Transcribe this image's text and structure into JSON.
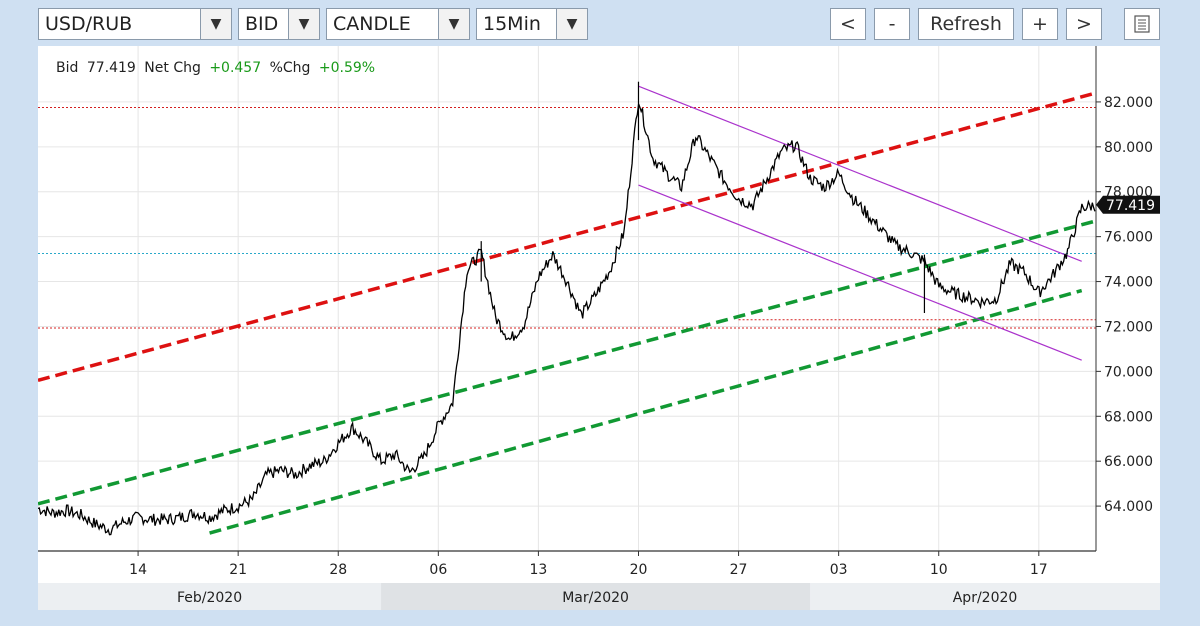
{
  "toolbar": {
    "symbol": "USD/RUB",
    "price_type": "BID",
    "chart_style": "CANDLE",
    "interval": "15Min",
    "prev_label": "<",
    "zoom_out_label": "-",
    "refresh_label": "Refresh",
    "zoom_in_label": "+",
    "next_label": ">",
    "menu_icon": "list-icon"
  },
  "info": {
    "bid_label": "Bid",
    "bid_value": "77.419",
    "netchg_label": "Net Chg",
    "netchg_value": "+0.457",
    "pctchg_label": "%Chg",
    "pctchg_value": "+0.59%"
  },
  "chart_data": {
    "type": "candlestick",
    "title": "",
    "xlabel": "",
    "ylabel": "",
    "x_range": [
      "2020-02-07",
      "2020-04-21"
    ],
    "ylim": [
      62.0,
      83.6
    ],
    "y_ticks": [
      "64.000",
      "66.000",
      "68.000",
      "70.000",
      "72.000",
      "74.000",
      "76.000",
      "78.000",
      "80.000",
      "82.000"
    ],
    "x_ticks": [
      {
        "label": "14",
        "date": "2020-02-14"
      },
      {
        "label": "21",
        "date": "2020-02-21"
      },
      {
        "label": "28",
        "date": "2020-02-28"
      },
      {
        "label": "06",
        "date": "2020-03-06"
      },
      {
        "label": "13",
        "date": "2020-03-13"
      },
      {
        "label": "20",
        "date": "2020-03-20"
      },
      {
        "label": "27",
        "date": "2020-03-27"
      },
      {
        "label": "03",
        "date": "2020-04-03"
      },
      {
        "label": "10",
        "date": "2020-04-10"
      },
      {
        "label": "17",
        "date": "2020-04-17"
      }
    ],
    "months": [
      {
        "label": "Feb/2020",
        "start": "2020-02-07",
        "end": "2020-03-02"
      },
      {
        "label": "Mar/2020",
        "start": "2020-03-02",
        "end": "2020-04-01"
      },
      {
        "label": "Apr/2020",
        "start": "2020-04-01",
        "end": "2020-04-21"
      }
    ],
    "last_price": "77.419",
    "price_points": [
      [
        "2020-02-07",
        63.9
      ],
      [
        "2020-02-08",
        63.7
      ],
      [
        "2020-02-09",
        63.8
      ],
      [
        "2020-02-10",
        63.6
      ],
      [
        "2020-02-11",
        63.2
      ],
      [
        "2020-02-12",
        62.95
      ],
      [
        "2020-02-13",
        63.3
      ],
      [
        "2020-02-14",
        63.5
      ],
      [
        "2020-02-15",
        63.4
      ],
      [
        "2020-02-16",
        63.4
      ],
      [
        "2020-02-17",
        63.5
      ],
      [
        "2020-02-18",
        63.7
      ],
      [
        "2020-02-19",
        63.5
      ],
      [
        "2020-02-20",
        63.8
      ],
      [
        "2020-02-21",
        64.0
      ],
      [
        "2020-02-22",
        64.3
      ],
      [
        "2020-02-23",
        65.4
      ],
      [
        "2020-02-24",
        65.6
      ],
      [
        "2020-02-25",
        65.4
      ],
      [
        "2020-02-26",
        65.8
      ],
      [
        "2020-02-27",
        66.0
      ],
      [
        "2020-02-28",
        66.8
      ],
      [
        "2020-02-29",
        67.5
      ],
      [
        "2020-03-01",
        66.8
      ],
      [
        "2020-03-02",
        66.0
      ],
      [
        "2020-03-03",
        66.3
      ],
      [
        "2020-03-04",
        65.5
      ],
      [
        "2020-03-05",
        66.2
      ],
      [
        "2020-03-06",
        67.6
      ],
      [
        "2020-03-07",
        68.6
      ],
      [
        "2020-03-08",
        74.5
      ],
      [
        "2020-03-09",
        75.3
      ],
      [
        "2020-03-10",
        72.4
      ],
      [
        "2020-03-11",
        71.4
      ],
      [
        "2020-03-12",
        72.1
      ],
      [
        "2020-03-13",
        74.2
      ],
      [
        "2020-03-14",
        75.2
      ],
      [
        "2020-03-15",
        74.0
      ],
      [
        "2020-03-16",
        72.5
      ],
      [
        "2020-03-17",
        73.4
      ],
      [
        "2020-03-18",
        74.5
      ],
      [
        "2020-03-19",
        76.2
      ],
      [
        "2020-03-20",
        82.2
      ],
      [
        "2020-03-21",
        79.5
      ],
      [
        "2020-03-22",
        78.8
      ],
      [
        "2020-03-23",
        78.2
      ],
      [
        "2020-03-24",
        80.5
      ],
      [
        "2020-03-25",
        79.5
      ],
      [
        "2020-03-26",
        78.5
      ],
      [
        "2020-03-27",
        77.7
      ],
      [
        "2020-03-28",
        77.4
      ],
      [
        "2020-03-29",
        78.6
      ],
      [
        "2020-03-30",
        79.8
      ],
      [
        "2020-03-31",
        80.1
      ],
      [
        "2020-04-01",
        78.6
      ],
      [
        "2020-04-02",
        78.2
      ],
      [
        "2020-04-03",
        78.8
      ],
      [
        "2020-04-04",
        77.7
      ],
      [
        "2020-04-05",
        77.0
      ],
      [
        "2020-04-06",
        76.3
      ],
      [
        "2020-04-07",
        75.6
      ],
      [
        "2020-04-08",
        75.3
      ],
      [
        "2020-04-09",
        74.9
      ],
      [
        "2020-04-10",
        73.8
      ],
      [
        "2020-04-11",
        73.5
      ],
      [
        "2020-04-12",
        73.3
      ],
      [
        "2020-04-13",
        73.1
      ],
      [
        "2020-04-14",
        73.2
      ],
      [
        "2020-04-15",
        74.8
      ],
      [
        "2020-04-16",
        74.4
      ],
      [
        "2020-04-17",
        73.5
      ],
      [
        "2020-04-18",
        74.3
      ],
      [
        "2020-04-19",
        75.3
      ],
      [
        "2020-04-20",
        77.3
      ],
      [
        "2020-04-21",
        77.4
      ]
    ],
    "horizontal_levels": [
      {
        "value": 81.75,
        "style": "red-dotted"
      },
      {
        "value": 75.25,
        "style": "cyan-dotted"
      },
      {
        "value": 71.93,
        "style": "red-dotted"
      },
      {
        "value": 72.3,
        "style": "red-dotted-short"
      }
    ],
    "trend_lines": [
      {
        "color": "#dd1111",
        "style": "dashed",
        "from": [
          "2020-02-07",
          69.6
        ],
        "to": [
          "2020-04-21",
          82.4
        ]
      },
      {
        "color": "#119933",
        "style": "dashed",
        "from": [
          "2020-02-07",
          64.1
        ],
        "to": [
          "2020-04-21",
          76.7
        ]
      },
      {
        "color": "#119933",
        "style": "dashed",
        "from": [
          "2020-02-19",
          62.8
        ],
        "to": [
          "2020-04-20",
          73.6
        ]
      },
      {
        "color": "#aa33cc",
        "style": "solid",
        "from": [
          "2020-03-20",
          82.7
        ],
        "to": [
          "2020-04-20",
          74.9
        ]
      },
      {
        "color": "#aa33cc",
        "style": "solid",
        "from": [
          "2020-03-20",
          78.3
        ],
        "to": [
          "2020-04-20",
          70.5
        ]
      }
    ],
    "grid": true,
    "colors": {
      "price": "#000000",
      "up_text": "#1a9a1a",
      "last_price_box": "#111111"
    }
  }
}
